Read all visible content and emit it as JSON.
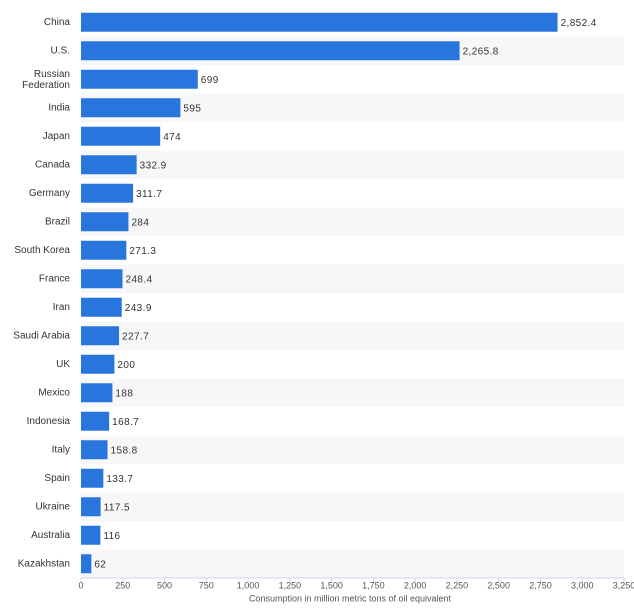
{
  "chart_data": {
    "type": "bar",
    "orientation": "horizontal",
    "x_label": "Consumption in million metric tons of oil equivalent",
    "categories": [
      "China",
      "U.S.",
      "Russian Federation",
      "India",
      "Japan",
      "Canada",
      "Germany",
      "Brazil",
      "South Korea",
      "France",
      "Iran",
      "Saudi Arabia",
      "UK",
      "Mexico",
      "Indonesia",
      "Italy",
      "Spain",
      "Ukraine",
      "Australia",
      "Kazakhstan"
    ],
    "values": [
      2852.4,
      2265.8,
      699,
      595,
      474,
      332.9,
      311.7,
      284,
      271.3,
      248.4,
      243.9,
      227.7,
      200,
      188,
      168.7,
      158.8,
      133.7,
      117.5,
      116,
      62
    ],
    "value_labels": [
      "2,852.4",
      "2,265.8",
      "699",
      "595",
      "474",
      "332.9",
      "311.7",
      "284",
      "271.3",
      "248.4",
      "243.9",
      "227.7",
      "200",
      "188",
      "168.7",
      "158.8",
      "133.7",
      "117.5",
      "116",
      "62"
    ],
    "color": "#2876dd",
    "xlim": [
      0,
      3250
    ],
    "xticks": [
      0,
      250,
      500,
      750,
      {
        "value": 1000,
        "label": "1,000"
      },
      {
        "value": 1250,
        "label": "1,250"
      },
      {
        "value": 1500,
        "label": "1,500"
      },
      {
        "value": 1750,
        "label": "1,750"
      },
      {
        "value": 2000,
        "label": "2,000"
      },
      {
        "value": 2250,
        "label": "2,250"
      },
      {
        "value": 2500,
        "label": "2,500"
      },
      {
        "value": 2750,
        "label": "2,750"
      },
      {
        "value": 3000,
        "label": "3,000"
      },
      {
        "value": 3250,
        "label": "3,250"
      }
    ]
  }
}
